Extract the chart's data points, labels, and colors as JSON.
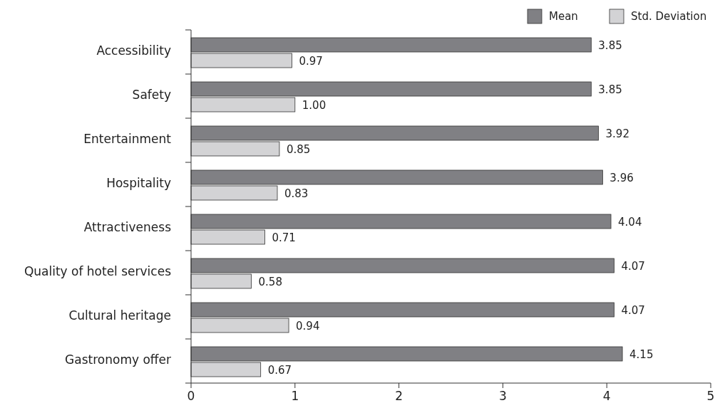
{
  "chart_data": {
    "type": "bar",
    "orientation": "horizontal",
    "categories": [
      "Accessibility",
      "Safety",
      "Entertainment",
      "Hospitality",
      "Attractiveness",
      "Quality of hotel services",
      "Cultural heritage",
      "Gastronomy offer"
    ],
    "series": [
      {
        "name": "Mean",
        "color": "#808084",
        "values": [
          3.85,
          3.85,
          3.92,
          3.96,
          4.04,
          4.07,
          4.07,
          4.15
        ],
        "value_labels": [
          "3.85",
          "3.85",
          "3.92",
          "3.96",
          "4.04",
          "4.07",
          "4.07",
          "4.15"
        ]
      },
      {
        "name": "Std. Deviation",
        "color": "#d3d3d5",
        "values": [
          0.97,
          1.0,
          0.85,
          0.83,
          0.71,
          0.58,
          0.94,
          0.67
        ],
        "value_labels": [
          "0.97",
          "1.00",
          "0.85",
          "0.83",
          "0.71",
          "0.58",
          "0.94",
          "0.67"
        ]
      }
    ],
    "xlim": [
      0,
      5
    ],
    "xticks": [
      0,
      1,
      2,
      3,
      4,
      5
    ],
    "legend": "top right",
    "grid": false
  }
}
